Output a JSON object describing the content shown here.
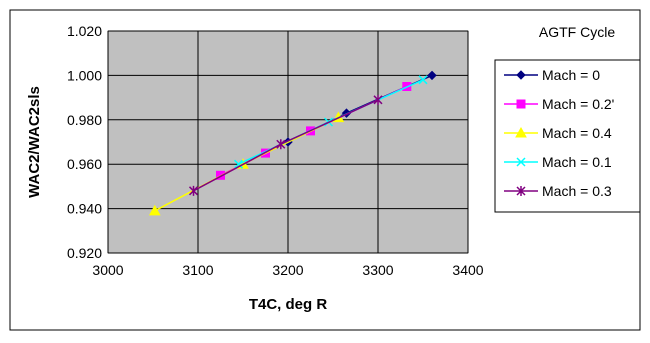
{
  "chart_data": {
    "type": "line",
    "title": "AGTF Cycle",
    "xlabel": "T4C, deg R",
    "ylabel": "WAC2/WAC2sls",
    "xlim": [
      3000,
      3400
    ],
    "ylim": [
      0.92,
      1.02
    ],
    "x_ticks": [
      "3000",
      "3100",
      "3200",
      "3300",
      "3400"
    ],
    "y_ticks": [
      "0.920",
      "0.940",
      "0.960",
      "0.980",
      "1.000",
      "1.020"
    ],
    "grid": true,
    "legend_position": "right",
    "series": [
      {
        "name": "Mach = 0",
        "color": "#000080",
        "marker": "diamond",
        "x": [
          3200,
          3265,
          3360
        ],
        "y": [
          0.97,
          0.983,
          1.0
        ]
      },
      {
        "name": "Mach = 0.2'",
        "color": "#ff00ff",
        "marker": "square",
        "x": [
          3125,
          3175,
          3225,
          3332
        ],
        "y": [
          0.955,
          0.965,
          0.975,
          0.995
        ]
      },
      {
        "name": "Mach = 0.4",
        "color": "#ffff00",
        "marker": "triangle",
        "x": [
          3052,
          3150,
          3256
        ],
        "y": [
          0.939,
          0.96,
          0.981
        ]
      },
      {
        "name": "Mach = 0.1",
        "color": "#00ffff",
        "marker": "x",
        "x": [
          3145,
          3245,
          3350
        ],
        "y": [
          0.96,
          0.979,
          0.998
        ]
      },
      {
        "name": "Mach = 0.3",
        "color": "#800080",
        "marker": "star",
        "x": [
          3095,
          3192,
          3300
        ],
        "y": [
          0.948,
          0.969,
          0.989
        ]
      }
    ]
  }
}
